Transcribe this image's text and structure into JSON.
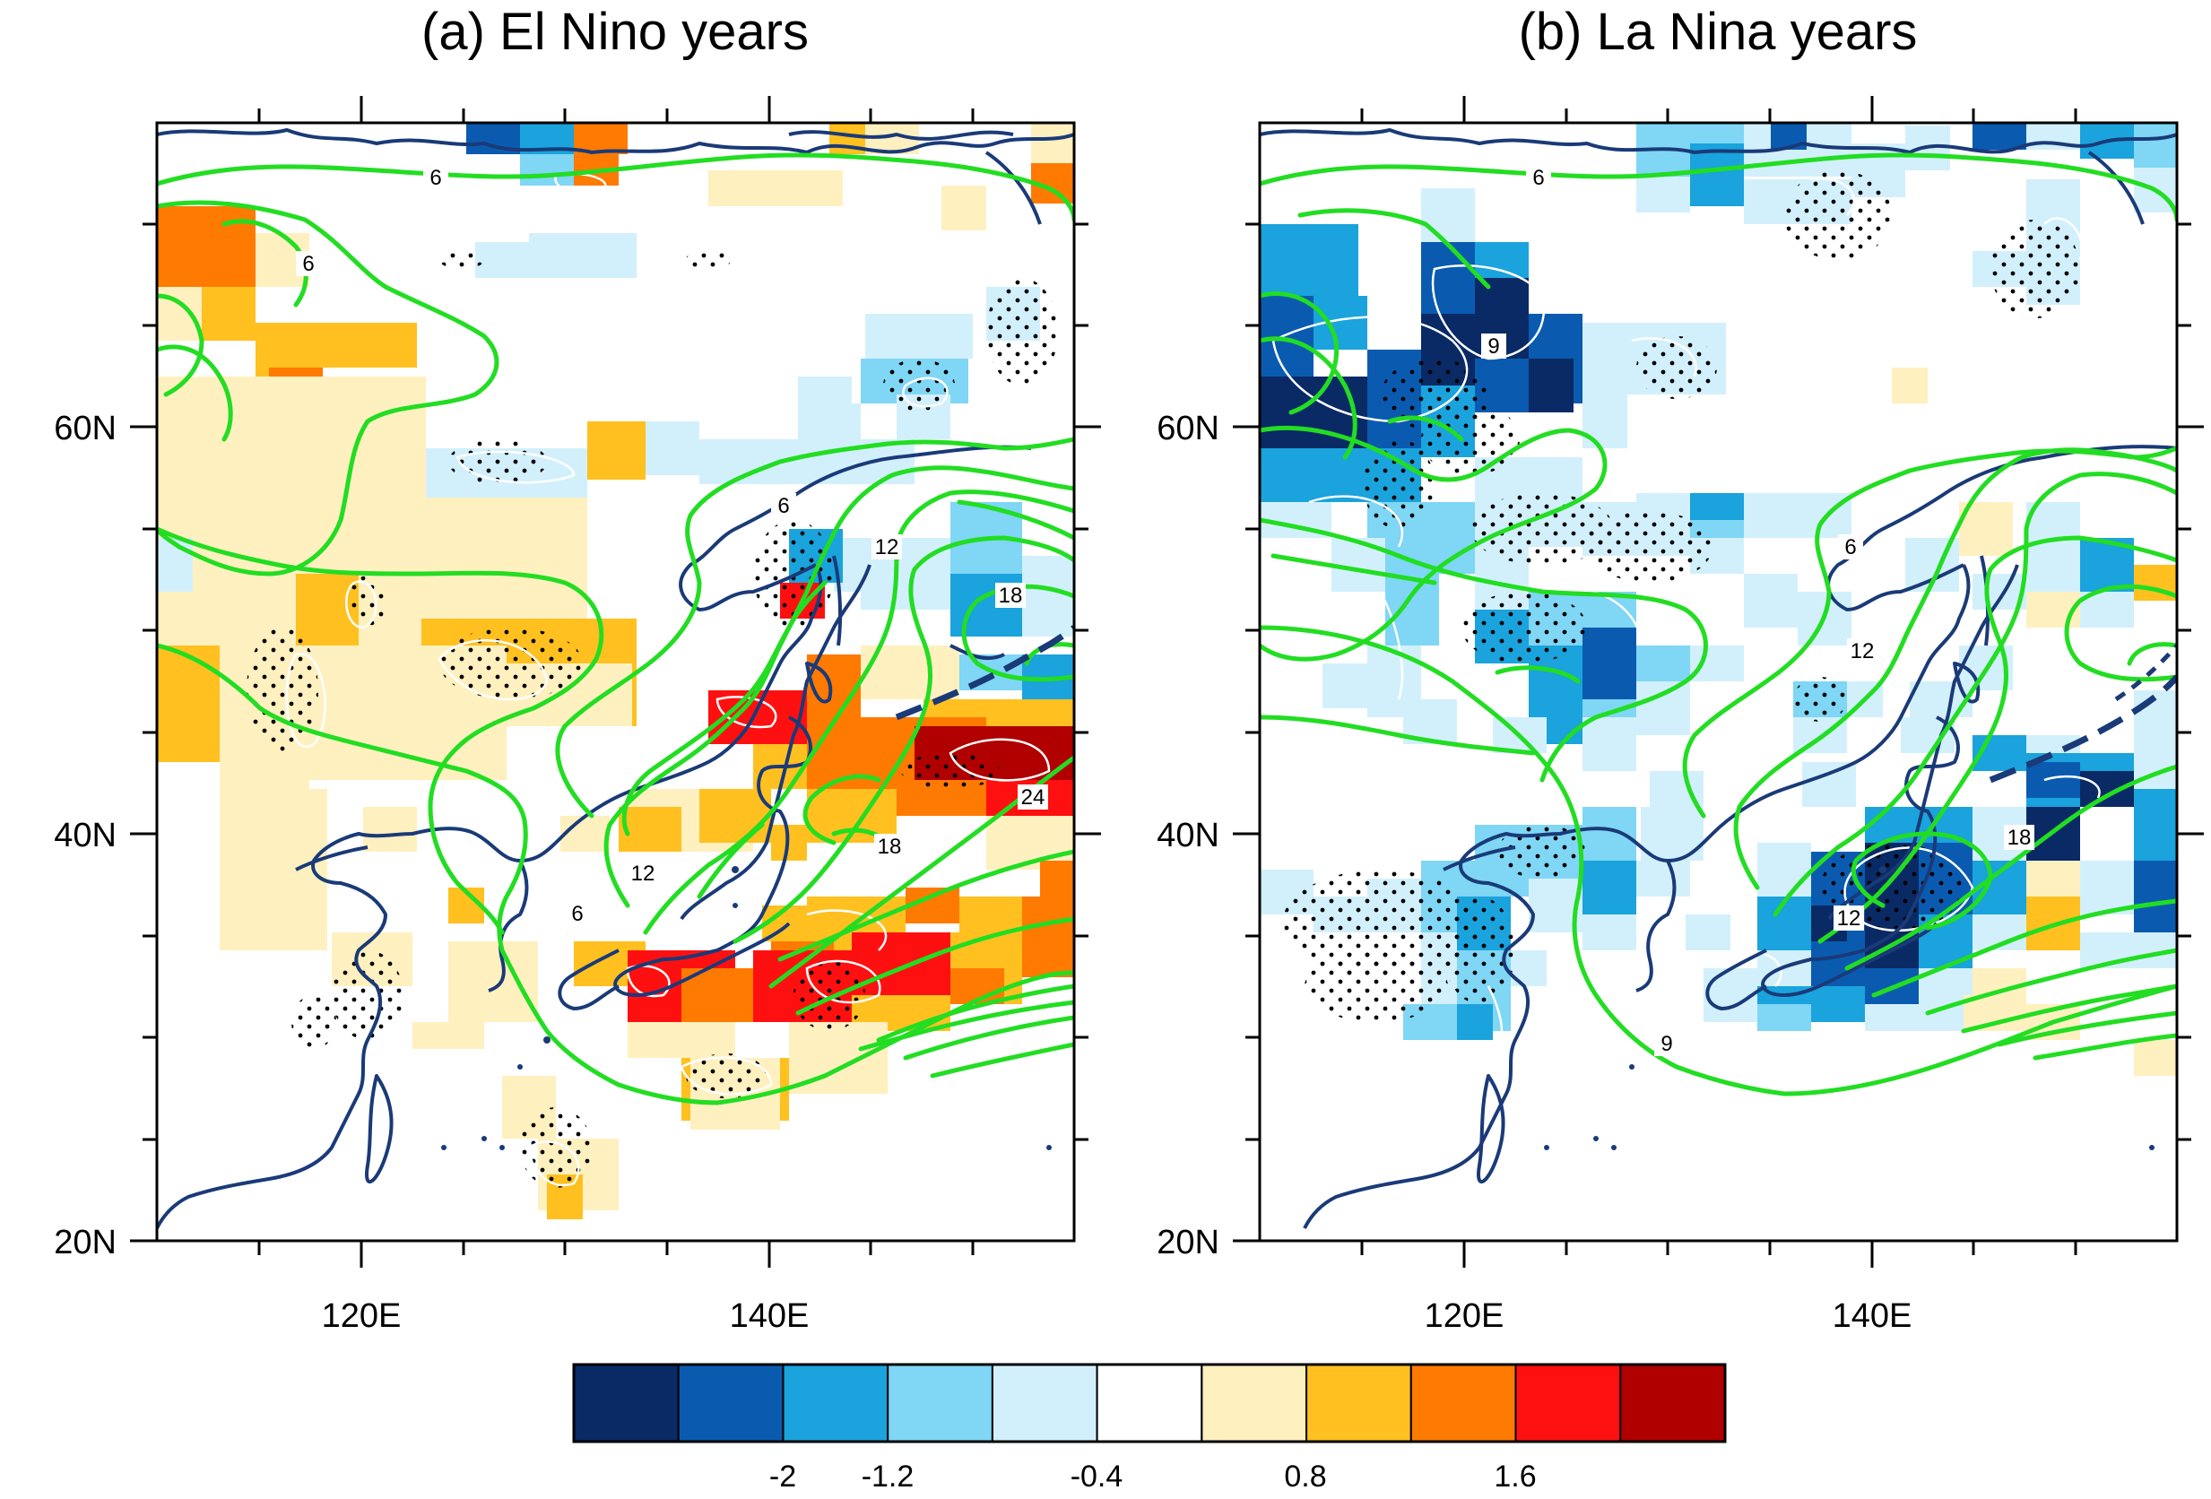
{
  "panels": [
    {
      "title": "(a) El Nino years",
      "lat_labels": [
        "60N",
        "40N",
        "20N"
      ],
      "lon_labels": [
        "120E",
        "140E"
      ],
      "contour_labels": [
        "6",
        "6",
        "6",
        "12",
        "18",
        "12",
        "18",
        "24",
        "6"
      ]
    },
    {
      "title": "(b) La Nina years",
      "lat_labels": [
        "60N",
        "40N",
        "20N"
      ],
      "lon_labels": [
        "120E",
        "140E"
      ],
      "contour_labels": [
        "6",
        "9",
        "6",
        "12",
        "12",
        "18",
        "9"
      ]
    }
  ],
  "colorbar": {
    "tick_labels": [
      "-2",
      "-1.2",
      "-0.4",
      "0.8",
      "1.6"
    ],
    "colors": [
      "#0a2a66",
      "#0a5bb0",
      "#1aa3dc",
      "#7fd6f5",
      "#d2f0fb",
      "#ffffff",
      "#fff0bf",
      "#ffc020",
      "#ff7a00",
      "#ff1010",
      "#b00000"
    ]
  },
  "colors": {
    "contour": "#22dd22",
    "coastline": "#1a3a78",
    "frame": "#000000"
  }
}
